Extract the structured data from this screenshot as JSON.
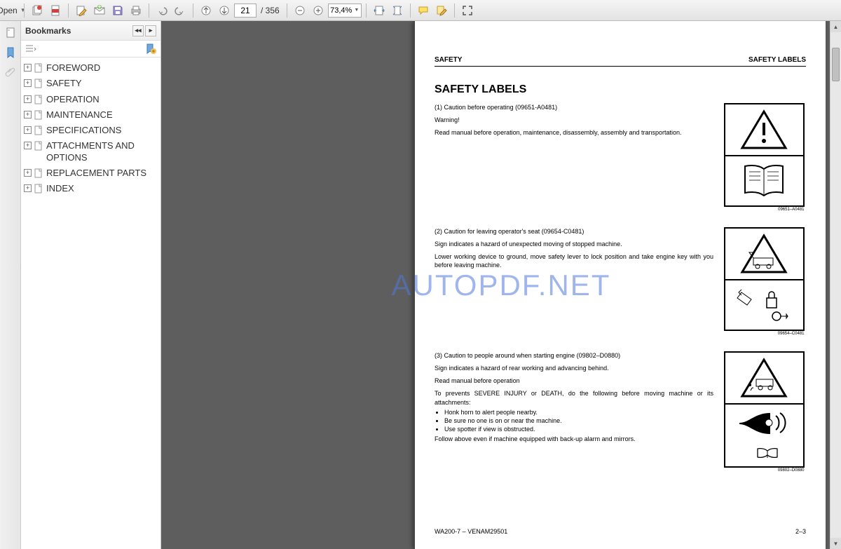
{
  "toolbar": {
    "open_label": "Open",
    "page_current": "21",
    "page_total": "/ 356",
    "zoom_value": "73,4%"
  },
  "sidebar": {
    "title": "Bookmarks",
    "items": [
      {
        "label": "FOREWORD"
      },
      {
        "label": "SAFETY"
      },
      {
        "label": "OPERATION"
      },
      {
        "label": "MAINTENANCE"
      },
      {
        "label": "SPECIFICATIONS"
      },
      {
        "label": "ATTACHMENTS AND OPTIONS"
      },
      {
        "label": "REPLACEMENT PARTS"
      },
      {
        "label": "INDEX"
      }
    ]
  },
  "page": {
    "header_left": "SAFETY",
    "header_right": "SAFETY LABELS",
    "title": "SAFETY LABELS",
    "entries": [
      {
        "num": "(1) Caution before operating (09651-A0481)",
        "warn": "Warning!",
        "body": "Read manual before operation, maintenance, disassembly, assembly and transportation.",
        "code": "09651–A0481"
      },
      {
        "num": "(2) Caution for leaving operator's seat (09654-C0481)",
        "body1": "Sign indicates a hazard of unexpected moving of stopped machine.",
        "body2": "Lower working device to ground, move safety lever to lock position and take engine key with you before leaving machine.",
        "code": "09654–C0481"
      },
      {
        "num": "(3) Caution to people around when starting engine (09802–D0880)",
        "body1": "Sign indicates a hazard of rear working and advancing behind.",
        "body2": "Read manual before operation",
        "body3": "To prevents SEVERE INJURY or DEATH, do the following before moving machine or its attachments:",
        "li1": "Honk horn to alert people nearby.",
        "li2": "Be sure no one is on or near the machine.",
        "li3": "Use spotter if view is obstructed.",
        "body4": "Follow above even if machine equipped with back-up alarm and mirrors.",
        "code": "09802–D0880"
      }
    ],
    "footer_left": "WA200-7 – VENAM29501",
    "footer_right": "2–3"
  },
  "watermark": "AUTOPDF.NET",
  "colors": {
    "toolbar_bg": "#e8e8e8",
    "viewer_bg": "#5e5e5e",
    "watermark": "#6585d8"
  }
}
